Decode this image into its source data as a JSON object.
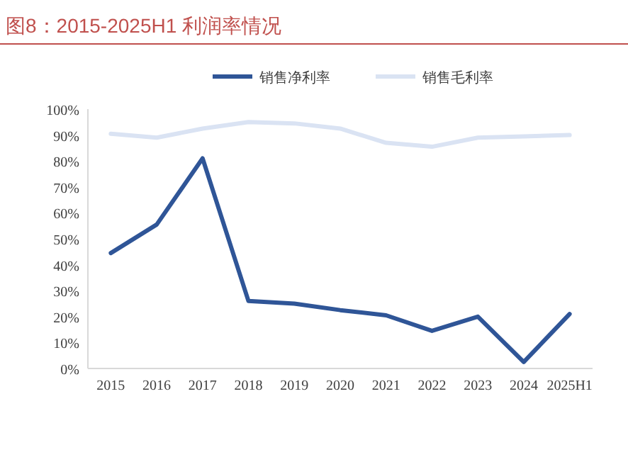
{
  "chart_data": {
    "type": "line",
    "title": "图8：2015-2025H1 利润率情况",
    "categories": [
      "2015",
      "2016",
      "2017",
      "2018",
      "2019",
      "2020",
      "2021",
      "2022",
      "2023",
      "2024",
      "2025H1"
    ],
    "series": [
      {
        "name": "销售净利率",
        "color": "#2f5597",
        "values": [
          44.5,
          55.5,
          81,
          26,
          25,
          22.5,
          20.5,
          14.5,
          20,
          2.5,
          21
        ]
      },
      {
        "name": "销售毛利率",
        "color": "#dae3f3",
        "values": [
          90.5,
          89,
          92.5,
          95,
          94.5,
          92.5,
          87,
          85.5,
          89,
          89.5,
          90
        ]
      }
    ],
    "ylim": [
      0,
      100
    ],
    "yticks": [
      {
        "value": 0,
        "label": "0%"
      },
      {
        "value": 10,
        "label": "10%"
      },
      {
        "value": 20,
        "label": "20%"
      },
      {
        "value": 30,
        "label": "30%"
      },
      {
        "value": 40,
        "label": "40%"
      },
      {
        "value": 50,
        "label": "50%"
      },
      {
        "value": 60,
        "label": "60%"
      },
      {
        "value": 70,
        "label": "70%"
      },
      {
        "value": 80,
        "label": "80%"
      },
      {
        "value": 90,
        "label": "90%"
      },
      {
        "value": 100,
        "label": "100%"
      }
    ],
    "legend": "top",
    "grid": false,
    "marker": "none",
    "line_style": "solid"
  }
}
